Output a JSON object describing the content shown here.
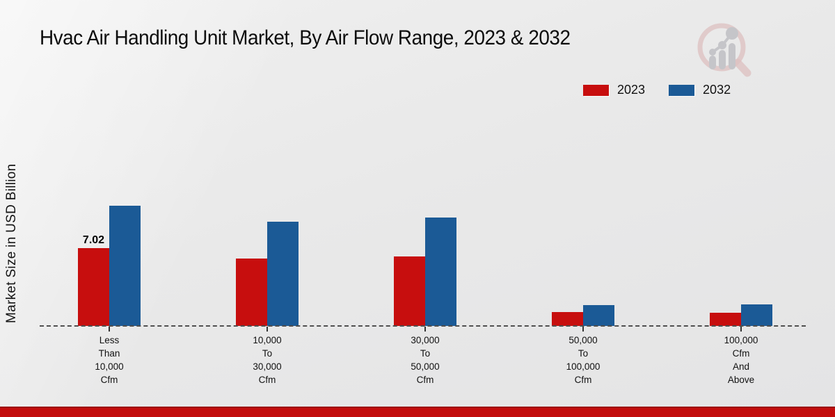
{
  "title": "Hvac Air Handling Unit Market, By Air Flow Range, 2023 & 2032",
  "colors": {
    "series_2023": "#c70e0e",
    "series_2032": "#1b5a96",
    "footer": "#c30c0c",
    "baseline": "#4f4f4f",
    "background": "#e9e9e9",
    "logo_gray": "#c2c2c6",
    "logo_pink": "#dcbcbc"
  },
  "logo_name": "market-research-magnifier-logo",
  "chart_data": {
    "type": "bar",
    "title": "Hvac Air Handling Unit Market, By Air Flow Range, 2023 & 2032",
    "xlabel": "",
    "ylabel": "Market Size in USD Billion",
    "categories": [
      "Less\nThan\n10,000\nCfm",
      "10,000\nTo\n30,000\nCfm",
      "30,000\nTo\n50,000\nCfm",
      "50,000\nTo\n100,000\nCfm",
      "100,000\nCfm\nAnd\nAbove"
    ],
    "series": [
      {
        "name": "2023",
        "color": "#c70e0e",
        "values": [
          7.02,
          6.1,
          6.3,
          1.25,
          1.2
        ]
      },
      {
        "name": "2032",
        "color": "#1b5a96",
        "values": [
          10.85,
          9.4,
          9.8,
          1.9,
          1.95
        ]
      }
    ],
    "annotations": [
      {
        "series": "2023",
        "category_index": 0,
        "text": "7.02"
      }
    ],
    "ylim": [
      0,
      12
    ],
    "grid": false,
    "y_axis_ticks_visible": false,
    "baseline_style": "dashed",
    "legend_position": "top-right"
  }
}
